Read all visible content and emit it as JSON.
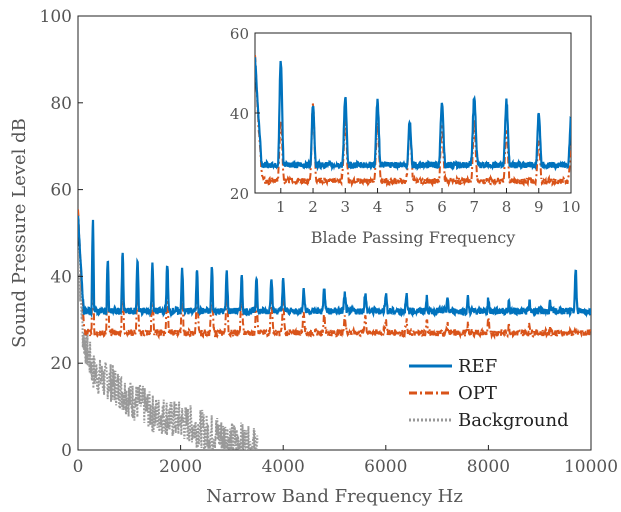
{
  "chart_data": [
    {
      "type": "line",
      "xlabel": "Narrow Band Frequency Hz",
      "ylabel": "Sound Pressure Level dB",
      "xlim": [
        0,
        10000
      ],
      "ylim": [
        0,
        100
      ],
      "xticks": [
        "0",
        "2000",
        "4000",
        "6000",
        "8000",
        "10000"
      ],
      "yticks": [
        "0",
        "20",
        "40",
        "60",
        "80",
        "100"
      ],
      "legend_position": "bottom-right",
      "grid": false,
      "series": [
        {
          "name": "REF",
          "color": "#0072BD",
          "style": "solid",
          "x": [
            0,
            60,
            120,
            150,
            180,
            230,
            300,
            400,
            500,
            600,
            700,
            800,
            900,
            1000,
            1200,
            1400,
            1600,
            1800,
            2000,
            2200,
            2400,
            2600,
            2800,
            3000,
            3200,
            3400,
            3600,
            3800,
            4000,
            4500,
            5000,
            5500,
            6000,
            6500,
            7000,
            7500,
            8000,
            8500,
            9000,
            9500,
            9700,
            9800,
            10000
          ],
          "y": [
            54,
            42,
            30,
            24,
            26,
            25,
            26,
            27,
            27,
            28,
            27,
            29,
            29,
            30,
            30,
            30,
            30,
            31,
            30,
            30,
            30,
            30,
            31,
            31,
            31,
            31,
            31,
            32,
            32,
            32,
            32,
            32,
            32,
            31,
            31,
            31,
            31,
            31,
            30,
            30,
            31,
            32,
            31
          ],
          "peaks": [
            [
              290,
              53
            ],
            [
              580,
              44
            ],
            [
              870,
              45
            ],
            [
              1160,
              44
            ],
            [
              1450,
              43
            ],
            [
              1740,
              43
            ],
            [
              2030,
              42
            ],
            [
              2320,
              42
            ],
            [
              2610,
              42
            ],
            [
              2900,
              41
            ],
            [
              3190,
              40
            ],
            [
              3480,
              40
            ],
            [
              3770,
              40
            ],
            [
              4000,
              39
            ],
            [
              4400,
              37
            ],
            [
              4800,
              37
            ],
            [
              5200,
              36
            ],
            [
              5600,
              36
            ],
            [
              6000,
              36
            ],
            [
              6400,
              36
            ],
            [
              6800,
              35
            ],
            [
              7200,
              35
            ],
            [
              7600,
              35
            ],
            [
              8000,
              35
            ],
            [
              8400,
              34
            ],
            [
              8800,
              34
            ],
            [
              9200,
              34
            ],
            [
              9700,
              42
            ]
          ]
        },
        {
          "name": "OPT",
          "color": "#D95319",
          "style": "dashdot",
          "x": [
            0,
            60,
            120,
            150,
            180,
            230,
            300,
            400,
            500,
            600,
            700,
            800,
            900,
            1000,
            1200,
            1400,
            1600,
            1800,
            2000,
            2200,
            2400,
            2600,
            2800,
            3000,
            3200,
            3400,
            3600,
            3800,
            4000,
            4500,
            5000,
            5500,
            6000,
            6500,
            7000,
            7500,
            8000,
            8500,
            9000,
            9500,
            10000
          ],
          "y": [
            55,
            41,
            28,
            21,
            19,
            22,
            23,
            23,
            24,
            24,
            24,
            25,
            25,
            25,
            26,
            26,
            26,
            26,
            26,
            26,
            27,
            27,
            27,
            27,
            27,
            27,
            27,
            27,
            27,
            27,
            27,
            27,
            27,
            26,
            26,
            26,
            26,
            25,
            25,
            25,
            26
          ],
          "peaks": [
            [
              290,
              44
            ],
            [
              580,
              43
            ],
            [
              870,
              40
            ],
            [
              1160,
              38
            ],
            [
              1450,
              38
            ],
            [
              1740,
              38
            ],
            [
              2030,
              37
            ],
            [
              2320,
              38
            ],
            [
              2610,
              39
            ],
            [
              2900,
              37
            ],
            [
              3190,
              37
            ],
            [
              3480,
              36
            ],
            [
              3770,
              35
            ],
            [
              4000,
              34
            ],
            [
              4400,
              32
            ],
            [
              4800,
              31
            ],
            [
              5200,
              31
            ],
            [
              5600,
              31
            ],
            [
              6000,
              30
            ],
            [
              6400,
              30
            ],
            [
              6800,
              30
            ],
            [
              7200,
              29
            ],
            [
              7600,
              29
            ],
            [
              8000,
              30
            ],
            [
              8400,
              29
            ],
            [
              8800,
              29
            ],
            [
              9200,
              28
            ]
          ]
        },
        {
          "name": "Background",
          "color": "#999999",
          "style": "dotted",
          "x": [
            0,
            100,
            200,
            300,
            400,
            500,
            600,
            700,
            800,
            900,
            1000,
            1100,
            1200,
            1300,
            1400,
            1500,
            1600,
            1700,
            1800,
            1900,
            2000,
            2100,
            2200,
            2300,
            2400,
            2500,
            2600,
            2700,
            2800,
            2900,
            3000,
            3100,
            3200,
            3300,
            3400,
            3500
          ],
          "y": [
            47,
            26,
            22,
            18,
            17,
            16,
            16,
            15,
            14,
            13,
            12,
            11,
            11,
            10,
            9,
            8,
            8,
            8,
            7,
            7,
            7,
            6,
            6,
            5,
            5,
            4,
            4,
            4,
            3,
            3,
            2,
            2,
            2,
            1,
            1,
            1
          ],
          "noise": true
        }
      ]
    },
    {
      "type": "line",
      "xlabel": "Blade Passing Frequency",
      "xlim": [
        0.2,
        10
      ],
      "ylim": [
        20,
        60
      ],
      "xticks": [
        "1",
        "2",
        "3",
        "4",
        "5",
        "6",
        "7",
        "8",
        "9",
        "10"
      ],
      "yticks": [
        "20",
        "40",
        "60"
      ],
      "series": [
        {
          "name": "REF",
          "color": "#0072BD",
          "style": "solid",
          "x": [
            0.2,
            0.3,
            0.4,
            0.5,
            0.6,
            0.8,
            1.0,
            1.5,
            2.0,
            3.0,
            4.0,
            5.0,
            6.0,
            7.0,
            8.0,
            9.0,
            10.0
          ],
          "y": [
            54,
            40,
            28,
            22,
            22,
            23,
            23,
            23,
            24,
            25,
            25,
            25,
            26,
            27,
            26,
            25,
            24
          ],
          "peaks": [
            [
              1,
              53
            ],
            [
              2,
              42
            ],
            [
              3,
              44
            ],
            [
              4,
              43
            ],
            [
              5,
              38
            ],
            [
              6,
              43
            ],
            [
              7,
              44
            ],
            [
              8,
              43
            ],
            [
              9,
              40
            ],
            [
              10,
              39
            ]
          ]
        },
        {
          "name": "OPT",
          "color": "#D95319",
          "style": "dashdot",
          "x": [
            0.2,
            0.3,
            0.4,
            0.5,
            0.6,
            0.8,
            1.0,
            1.5,
            2.0,
            3.0,
            4.0,
            5.0,
            6.0,
            7.0,
            8.0,
            9.0,
            10.0
          ],
          "y": [
            55,
            38,
            26,
            21,
            21,
            22,
            22,
            22,
            22,
            23,
            23,
            23,
            22,
            22,
            22,
            22,
            22
          ],
          "peaks": [
            [
              1,
              38
            ],
            [
              2,
              42
            ],
            [
              3,
              38
            ],
            [
              4,
              37
            ],
            [
              5,
              37
            ],
            [
              6,
              37
            ],
            [
              7,
              38
            ],
            [
              8,
              36
            ],
            [
              9,
              33
            ],
            [
              10,
              32
            ]
          ]
        }
      ]
    }
  ]
}
